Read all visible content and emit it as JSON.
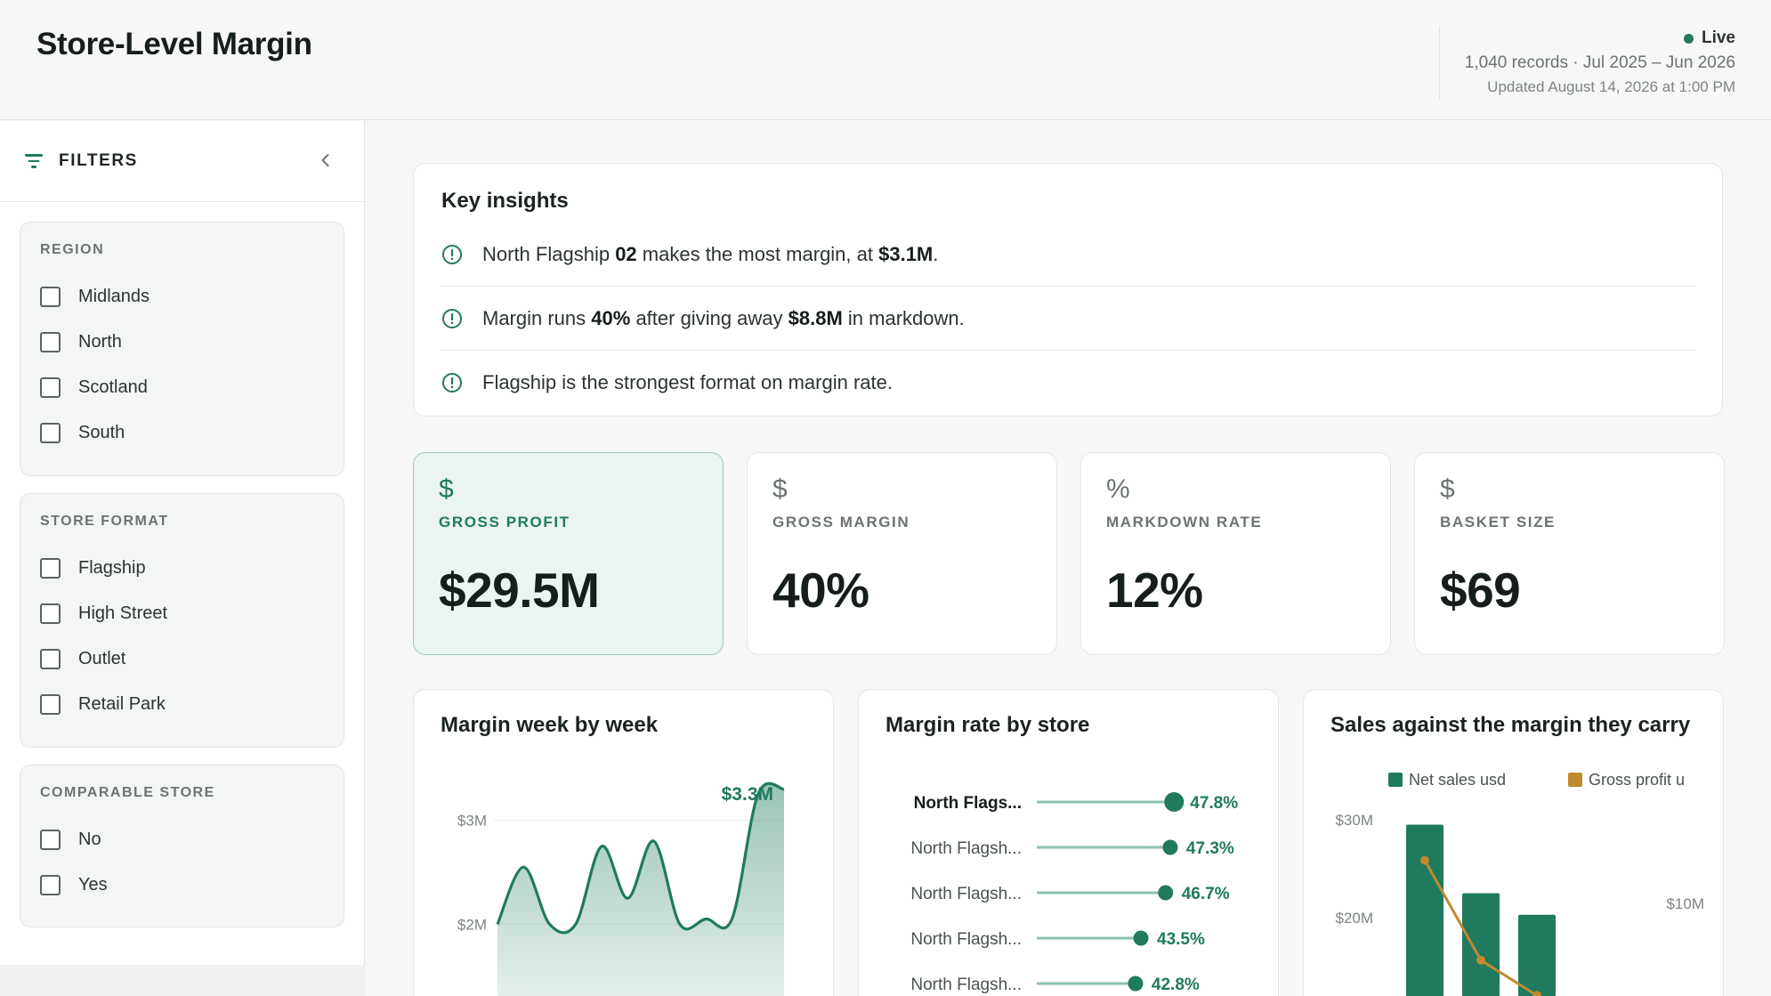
{
  "header": {
    "title": "Store-Level Margin",
    "live_label": "Live",
    "records": "1,040 records · Jul 2025 – Jun 2026",
    "updated": "Updated August 14, 2026 at 1:00 PM"
  },
  "sidebar": {
    "title": "FILTERS",
    "groups": [
      {
        "title": "REGION",
        "options": [
          "Midlands",
          "North",
          "Scotland",
          "South"
        ]
      },
      {
        "title": "STORE FORMAT",
        "options": [
          "Flagship",
          "High Street",
          "Outlet",
          "Retail Park"
        ]
      },
      {
        "title": "COMPARABLE STORE",
        "options": [
          "No",
          "Yes"
        ]
      }
    ]
  },
  "insights": {
    "title": "Key insights",
    "items": [
      {
        "p1": "North Flagship ",
        "b1": "02",
        "p2": " makes the most margin, at ",
        "b2": "$3.1M",
        "p3": "."
      },
      {
        "p1": "Margin runs ",
        "b1": "40%",
        "p2": " after giving away ",
        "b2": "$8.8M",
        "p3": " in markdown."
      },
      {
        "p1": "Flagship is the strongest format on margin rate.",
        "b1": "",
        "p2": "",
        "b2": "",
        "p3": ""
      }
    ]
  },
  "kpis": [
    {
      "icon": "$",
      "label": "GROSS PROFIT",
      "value": "$29.5M",
      "active": true
    },
    {
      "icon": "$",
      "label": "GROSS MARGIN",
      "value": "40%",
      "active": false
    },
    {
      "icon": "%",
      "label": "MARKDOWN RATE",
      "value": "12%",
      "active": false
    },
    {
      "icon": "$",
      "label": "BASKET SIZE",
      "value": "$69",
      "active": false
    }
  ],
  "colors": {
    "accent": "#1f7a5e",
    "accent_light": "#eaf4f0",
    "gold": "#c08a2e"
  },
  "chart_data": [
    {
      "type": "area",
      "title": "Margin week by week",
      "y_ticks": [
        "$3M",
        "$2M"
      ],
      "peak_label": "$3.3M",
      "ylim": [
        1.3,
        3.4
      ],
      "values": [
        2.0,
        2.55,
        2.0,
        2.0,
        2.75,
        2.25,
        2.8,
        2.0,
        2.05,
        2.05,
        3.25,
        3.3
      ]
    },
    {
      "type": "scatter",
      "title": "Margin rate by store",
      "categories": [
        "North Flags...",
        "North Flagsh...",
        "North Flagsh...",
        "North Flagsh...",
        "North Flagsh..."
      ],
      "values": [
        47.8,
        47.3,
        46.7,
        43.5,
        42.8
      ],
      "value_labels": [
        "47.8%",
        "47.3%",
        "46.7%",
        "43.5%",
        "42.8%"
      ]
    },
    {
      "type": "bar",
      "title": "Sales against the margin they carry",
      "legend": [
        "Net sales usd",
        "Gross profit u"
      ],
      "y_left_ticks": [
        "$30M",
        "$20M"
      ],
      "y_right_ticks": [
        "$10M"
      ],
      "series": [
        {
          "name": "Net sales usd",
          "values": [
            29.5,
            22.5,
            20.3
          ]
        },
        {
          "name": "Gross profit u",
          "values": [
            12.2,
            7.1,
            5.3
          ]
        }
      ]
    }
  ]
}
